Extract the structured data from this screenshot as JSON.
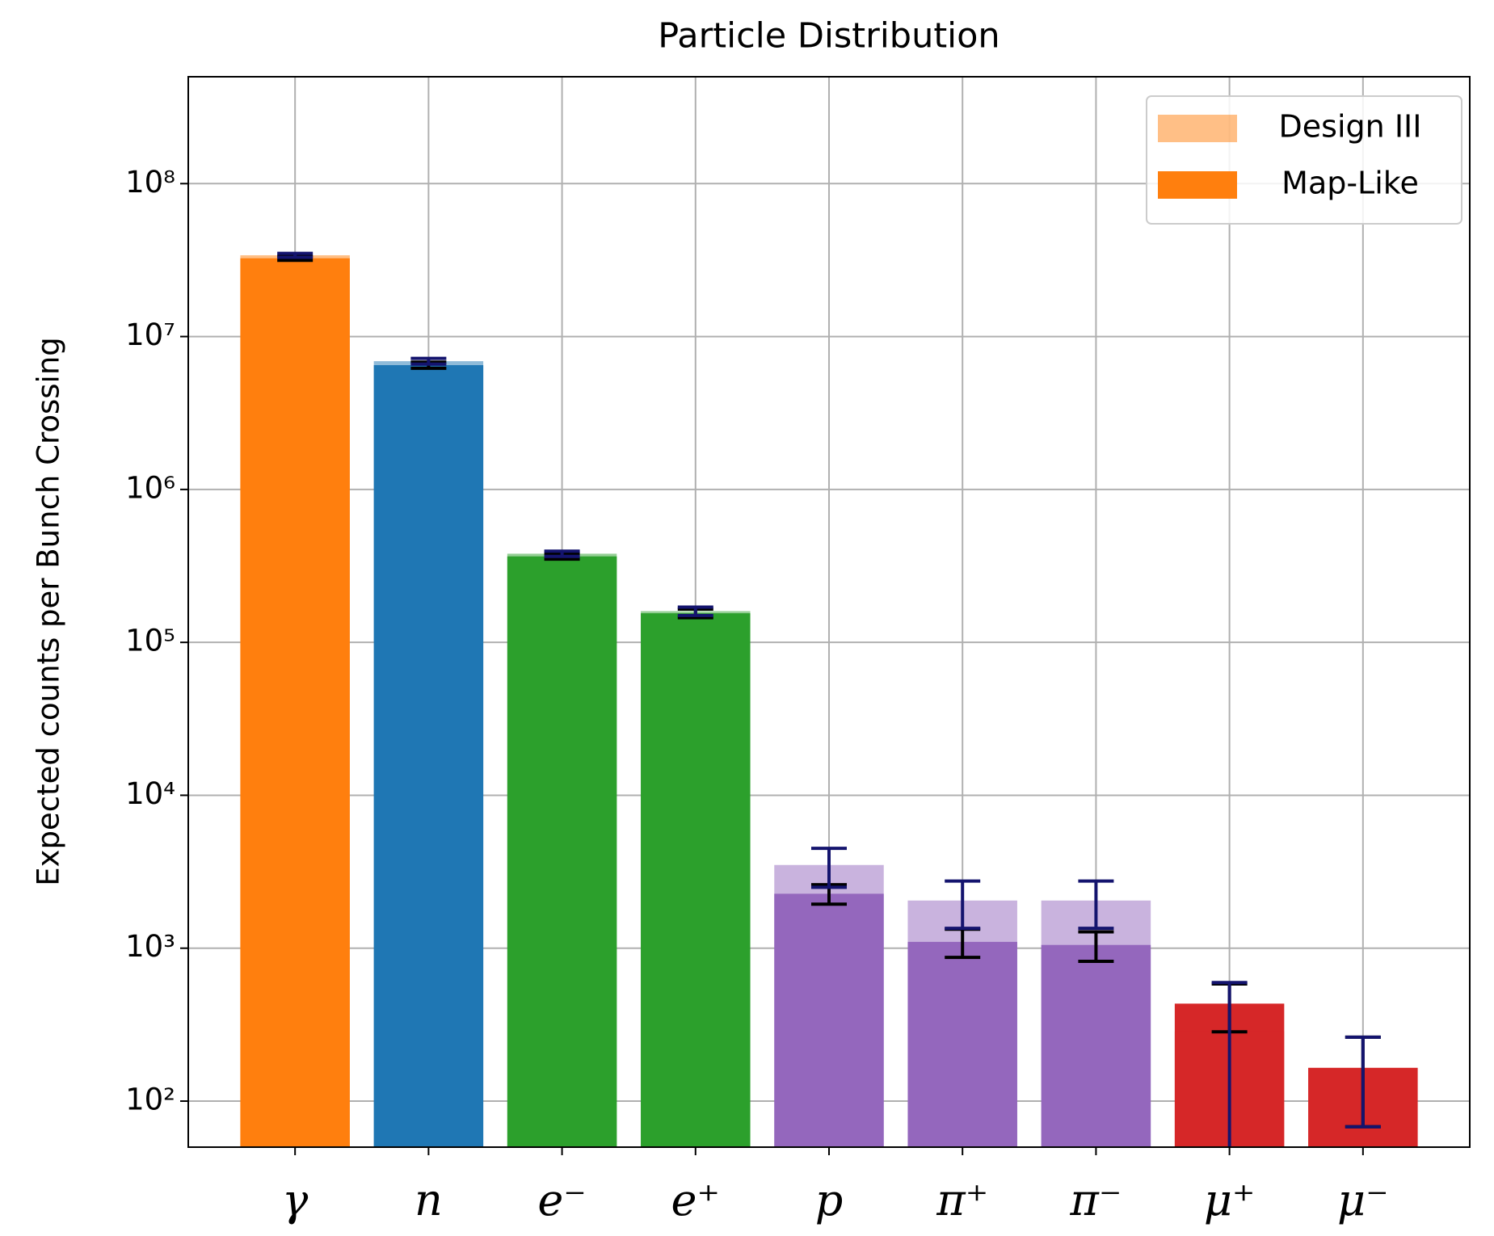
{
  "chart_data": {
    "type": "bar",
    "title": "Particle Distribution",
    "y_label": "Expected counts per Bunch Crossing",
    "categories": [
      "γ",
      "n",
      "e⁻",
      "e⁺",
      "p",
      "π⁺",
      "π⁻",
      "μ⁺",
      "μ⁻"
    ],
    "colors": [
      "#ff7f0e",
      "#1f77b4",
      "#2ca02c",
      "#2ca02c",
      "#9467bd",
      "#9467bd",
      "#9467bd",
      "#d62728",
      "#d62728"
    ],
    "series": [
      {
        "name": "Map-Like",
        "color": "#ff7f0e",
        "opacity": 1,
        "error_color": "#000000",
        "values": [
          32500000,
          6500000,
          365000,
          155000,
          2270,
          1100,
          1050,
          434,
          165
        ],
        "errors": [
          1000000,
          300000,
          15000,
          10000,
          330,
          230,
          230,
          150,
          97
        ]
      },
      {
        "name": "Design III",
        "color": "#ff7f0e",
        "opacity": 0.5,
        "error_color": "#14146e",
        "values": [
          34000000,
          6900000,
          380000,
          160000,
          3500,
          2050,
          2050,
          286,
          165
        ],
        "errors": [
          1000000,
          300000,
          15000,
          10000,
          1000,
          700,
          700,
          310,
          97
        ]
      }
    ],
    "log_scale": true,
    "ylim": [
      50,
      500000000
    ],
    "yticks": [
      {
        "value": 100,
        "label": "10²"
      },
      {
        "value": 1000,
        "label": "10³"
      },
      {
        "value": 10000,
        "label": "10⁴"
      },
      {
        "value": 100000,
        "label": "10⁵"
      },
      {
        "value": 1000000,
        "label": "10⁶"
      },
      {
        "value": 10000000,
        "label": "10⁷"
      },
      {
        "value": 100000000,
        "label": "10⁸"
      }
    ],
    "grid": true,
    "legend": "upper right",
    "legend_order": [
      1,
      0
    ]
  }
}
